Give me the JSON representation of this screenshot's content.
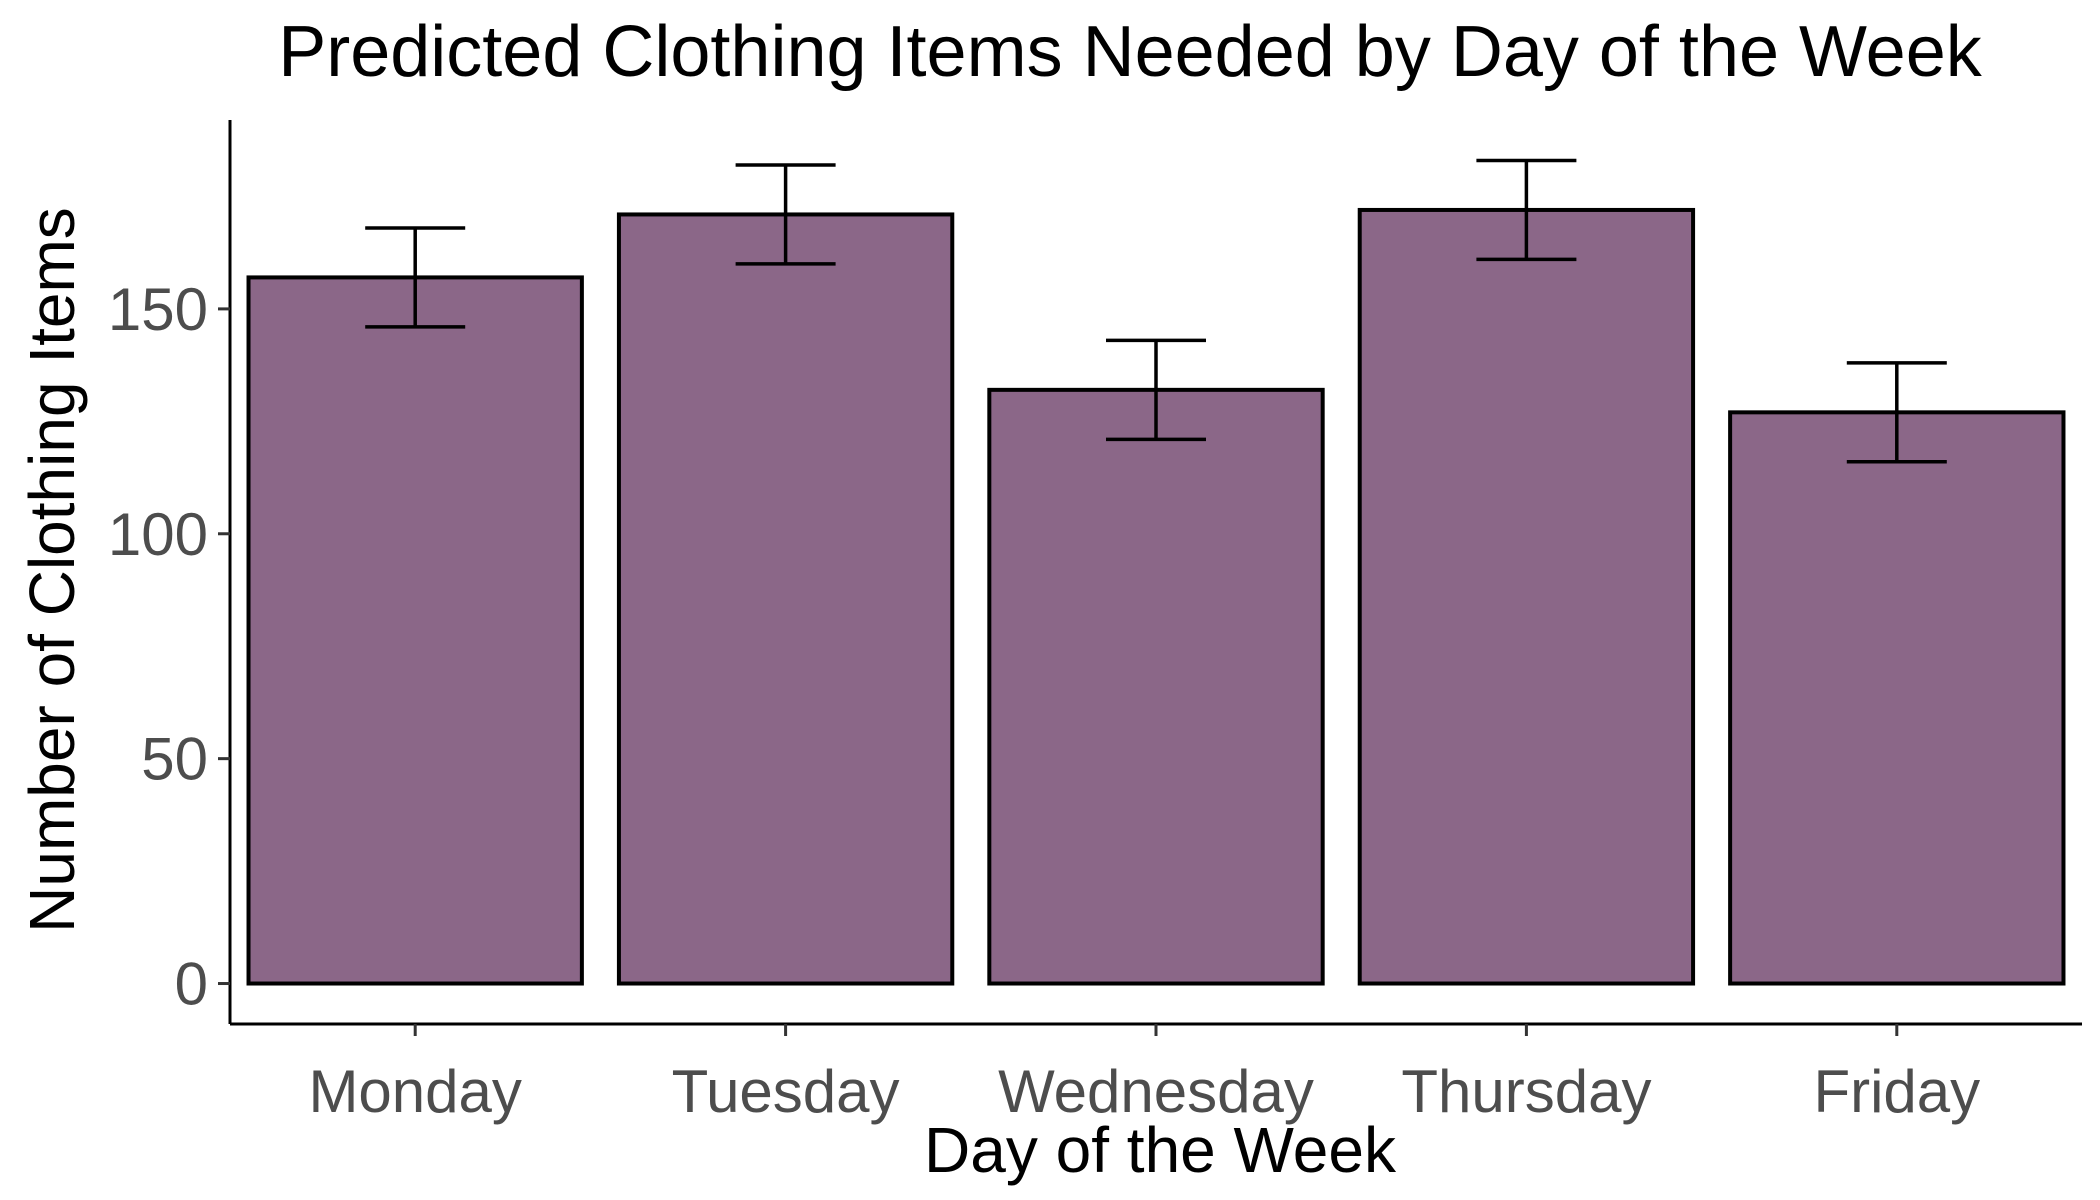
{
  "chart_data": {
    "type": "bar",
    "title": "Predicted Clothing Items Needed by Day of the Week",
    "xlabel": "Day of the Week",
    "ylabel": "Number of Clothing Items",
    "categories": [
      "Monday",
      "Tuesday",
      "Wednesday",
      "Thursday",
      "Friday"
    ],
    "values": [
      157,
      171,
      132,
      172,
      127
    ],
    "error_bars": [
      {
        "low": 146,
        "high": 168
      },
      {
        "low": 160,
        "high": 182
      },
      {
        "low": 121,
        "high": 143
      },
      {
        "low": 161,
        "high": 183
      },
      {
        "low": 116,
        "high": 138
      }
    ],
    "y_ticks": [
      0,
      50,
      100,
      150
    ],
    "ylim": [
      -9,
      192
    ],
    "bar_color": "#8B6788",
    "grid": false,
    "legend": "none"
  }
}
